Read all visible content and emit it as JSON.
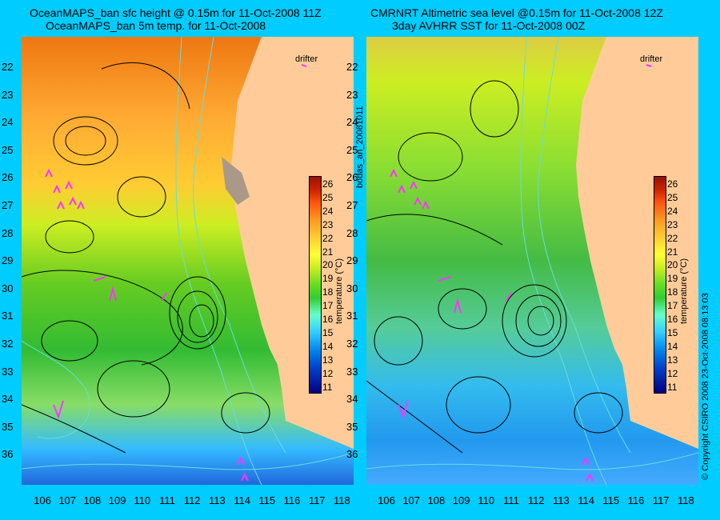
{
  "titles": {
    "left_line1": "OceanMAPS_ban sfc height @ 0.15m for 11-Oct-2008 11Z",
    "left_line2": "OceanMAPS_ban 5m temp. for 11-Oct-2008",
    "right_line1": "CMRNRT Altimetric sea level  @0.15m  for 11-Oct-2008 12Z",
    "right_line2": "3day AVHRR SST for 11-Oct-2008 00Z"
  },
  "latitudes": [
    "22",
    "23",
    "24",
    "25",
    "26",
    "27",
    "28",
    "29",
    "30",
    "31",
    "32",
    "33",
    "34",
    "35",
    "36"
  ],
  "longitudes": [
    "106",
    "107",
    "108",
    "109",
    "110",
    "111",
    "112",
    "113",
    "114",
    "115",
    "116",
    "117",
    "118"
  ],
  "drifter_label": "drifter",
  "colorbar": {
    "ticks": [
      "26",
      "25",
      "24",
      "23",
      "22",
      "21",
      "20",
      "19",
      "18",
      "17",
      "16",
      "15",
      "14",
      "13",
      "12",
      "11"
    ],
    "label": "temperature (°C)"
  },
  "side_text": {
    "bodas": "bodas_an_20081011",
    "copyright": "© Copyright CSIRO 2008   23-Oct-2008 08:13:03"
  },
  "colors": {
    "background": "#00ccff",
    "land": "#ffcc99",
    "drifter": "#ff33ff",
    "bathymetry": "#66dddd",
    "contour": "#000000"
  }
}
